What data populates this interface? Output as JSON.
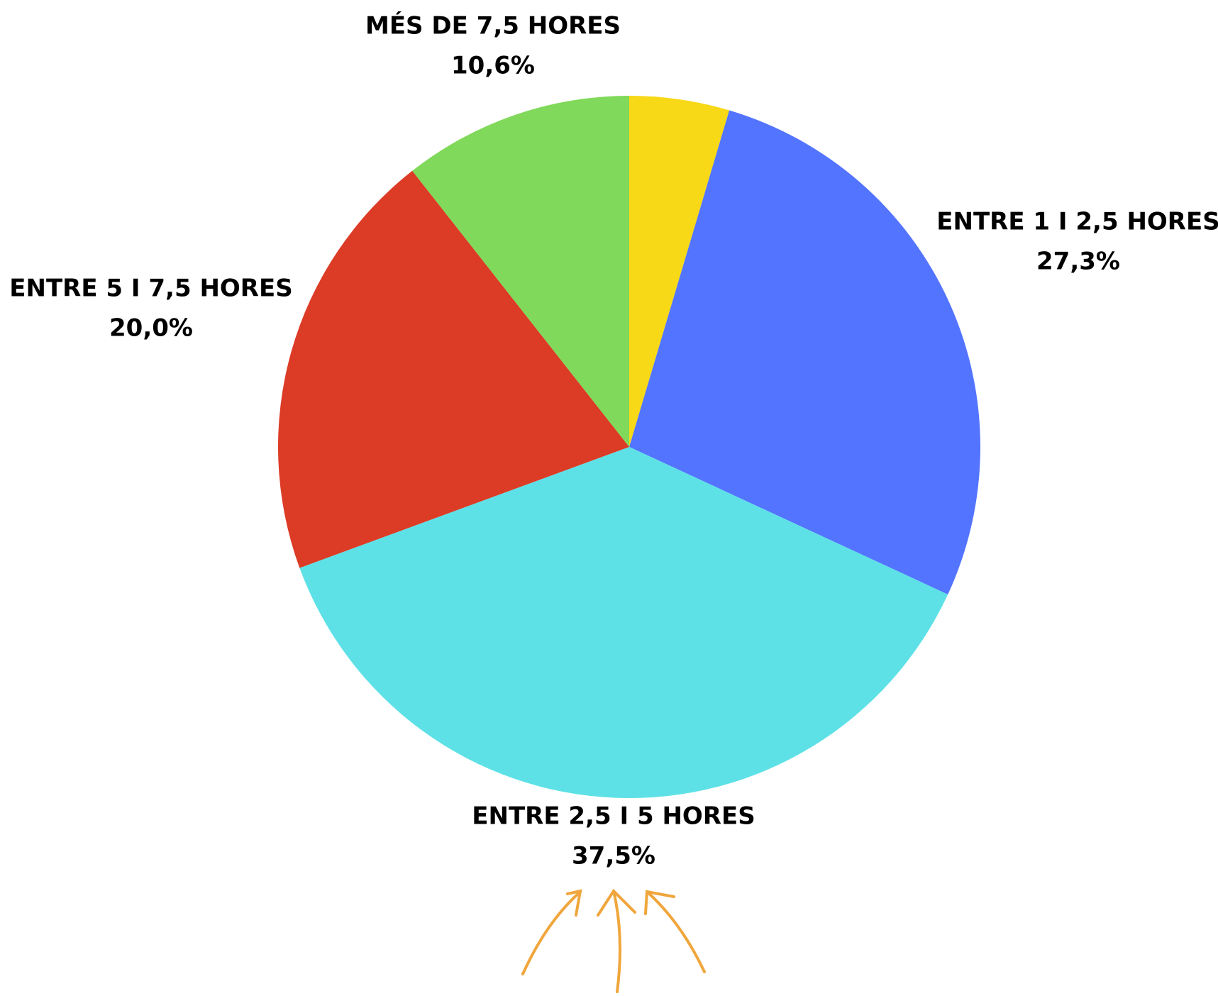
{
  "chart_data": {
    "type": "pie",
    "categories": [
      null,
      "ENTRE 1 I 2,5 HORES",
      "ENTRE 2,5 I 5 HORES",
      "ENTRE 5 I 7,5 HORES",
      "MÉS DE 7,5 HORES"
    ],
    "values": [
      4.6,
      27.3,
      37.5,
      20.0,
      10.6
    ],
    "value_labels": [
      null,
      "27,3%",
      "37,5%",
      "20,0%",
      "10,6%"
    ],
    "colors": [
      "#f7d917",
      "#5374ff",
      "#5ee1e6",
      "#dc3b26",
      "#80d95a"
    ]
  }
}
